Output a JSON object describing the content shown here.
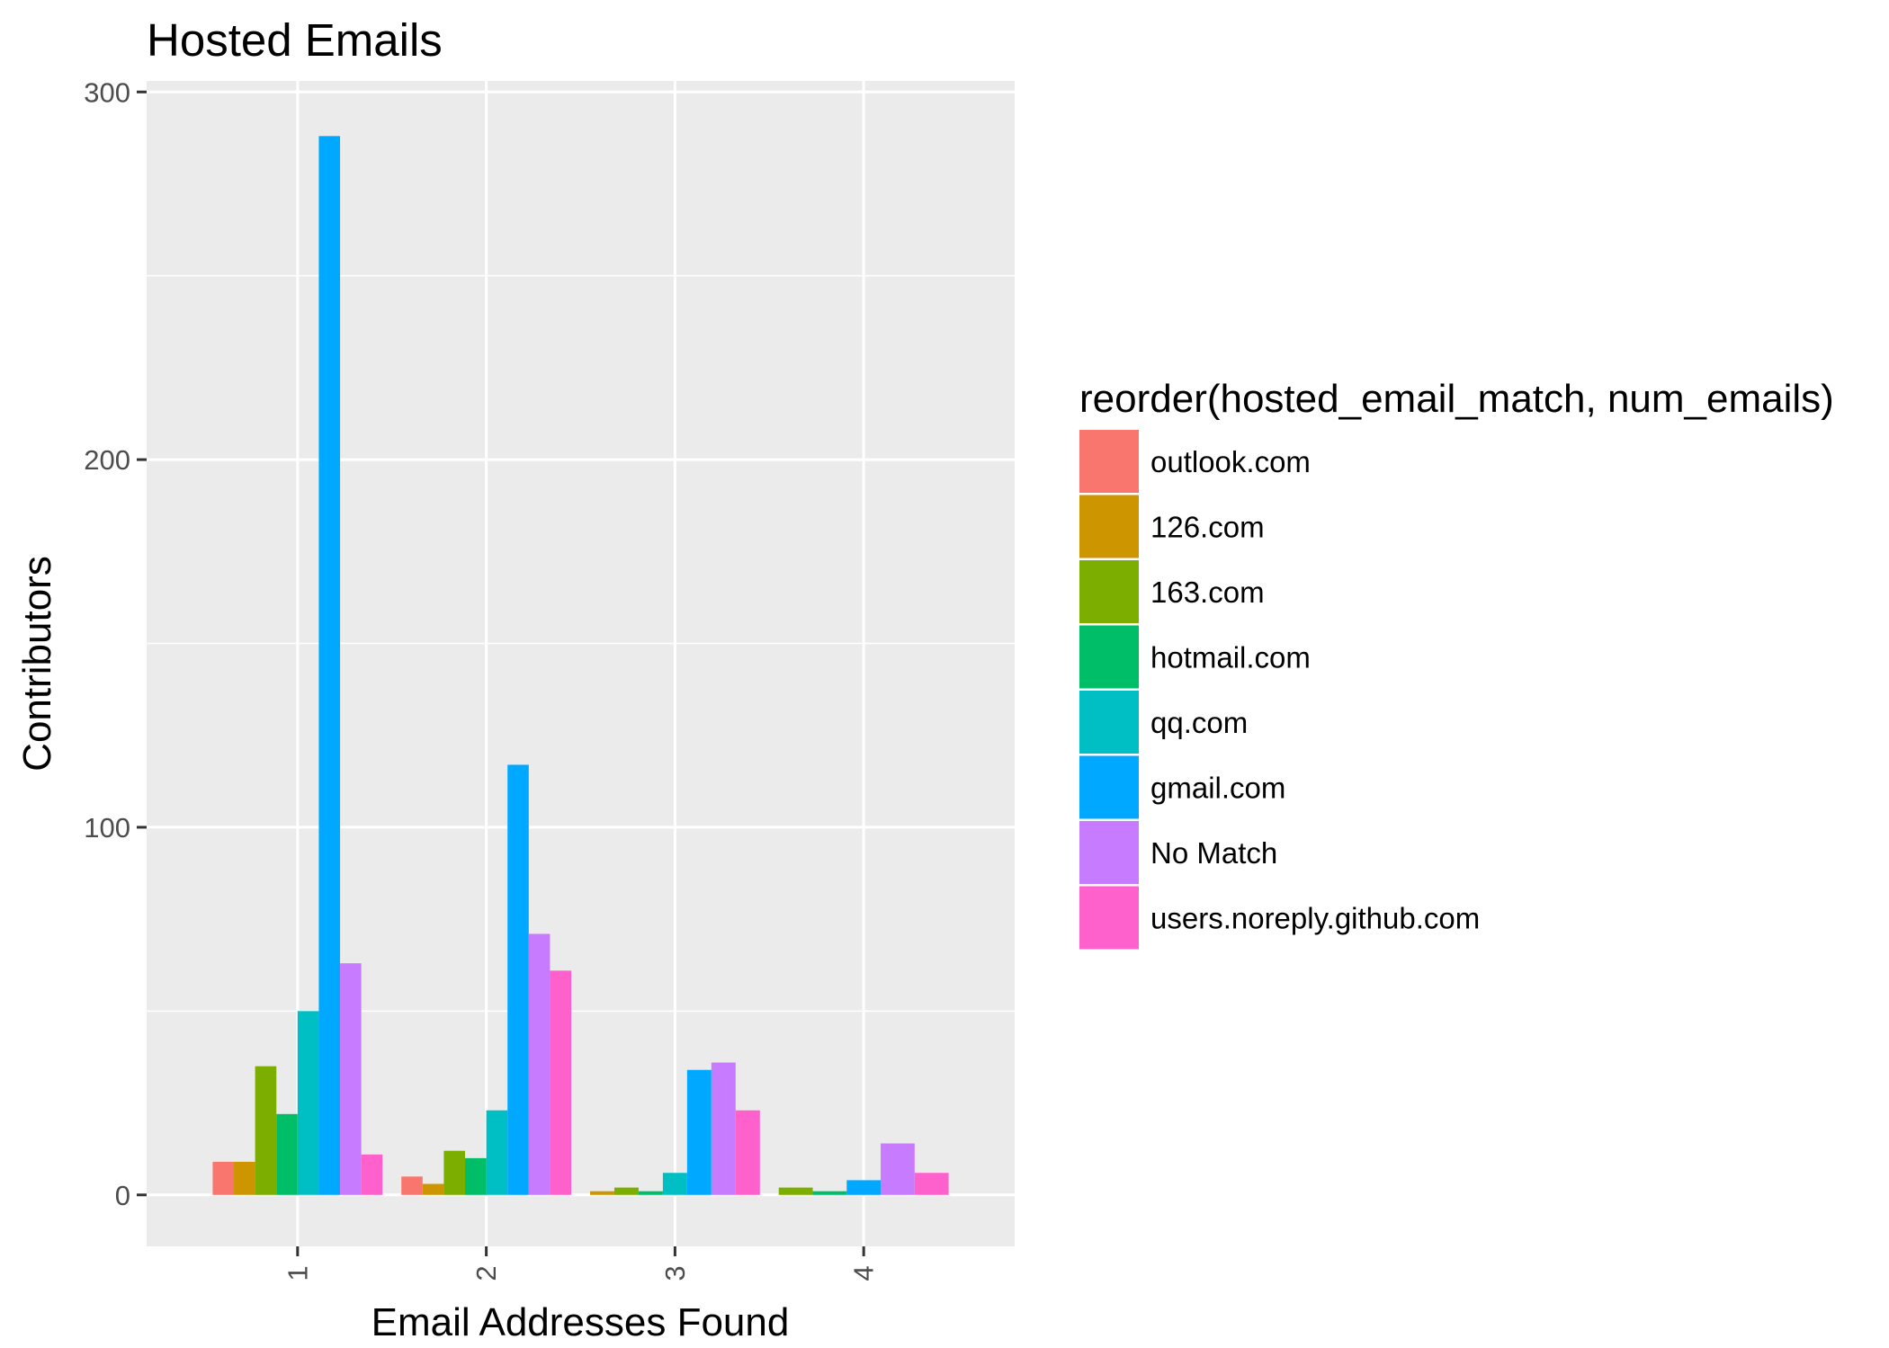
{
  "chart_data": {
    "type": "bar",
    "title": "Hosted Emails",
    "xlabel": "Email Addresses Found",
    "ylabel": "Contributors",
    "categories": [
      "1",
      "2",
      "3",
      "4"
    ],
    "yticks": [
      "0",
      "100",
      "200",
      "300"
    ],
    "ylim": [
      -14,
      303
    ],
    "grid": true,
    "legend_position": "right",
    "legend_title": "reorder(hosted_email_match, num_emails)",
    "series": [
      {
        "name": "outlook.com",
        "color": "#F8766D",
        "values": [
          9,
          5,
          null,
          null
        ]
      },
      {
        "name": "126.com",
        "color": "#CD9600",
        "values": [
          9,
          3,
          1,
          null
        ]
      },
      {
        "name": "163.com",
        "color": "#7CAE00",
        "values": [
          35,
          12,
          2,
          2
        ]
      },
      {
        "name": "hotmail.com",
        "color": "#00BE67",
        "values": [
          22,
          10,
          1,
          1
        ]
      },
      {
        "name": "qq.com",
        "color": "#00BFC4",
        "values": [
          50,
          23,
          6,
          null
        ]
      },
      {
        "name": "gmail.com",
        "color": "#00A9FF",
        "values": [
          288,
          117,
          34,
          4
        ]
      },
      {
        "name": "No Match",
        "color": "#C77CFF",
        "values": [
          63,
          71,
          36,
          14
        ]
      },
      {
        "name": "users.noreply.github.com",
        "color": "#FF61CC",
        "values": [
          11,
          61,
          23,
          6
        ]
      }
    ]
  }
}
